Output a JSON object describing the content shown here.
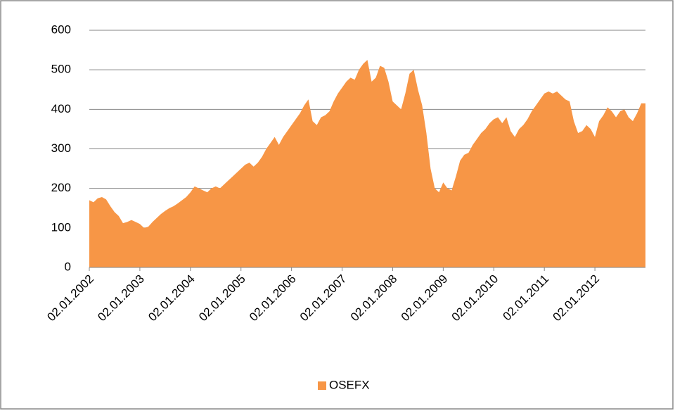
{
  "chart_data": {
    "type": "area",
    "categories": [
      "02.01.2002",
      null,
      null,
      null,
      null,
      null,
      null,
      null,
      null,
      null,
      null,
      null,
      "02.01.2003",
      null,
      null,
      null,
      null,
      null,
      null,
      null,
      null,
      null,
      null,
      null,
      "02.01.2004",
      null,
      null,
      null,
      null,
      null,
      null,
      null,
      null,
      null,
      null,
      null,
      "02.01.2005",
      null,
      null,
      null,
      null,
      null,
      null,
      null,
      null,
      null,
      null,
      null,
      "02.01.2006",
      null,
      null,
      null,
      null,
      null,
      null,
      null,
      null,
      null,
      null,
      null,
      "02.01.2007",
      null,
      null,
      null,
      null,
      null,
      null,
      null,
      null,
      null,
      null,
      null,
      "02.01.2008",
      null,
      null,
      null,
      null,
      null,
      null,
      null,
      null,
      null,
      null,
      null,
      "02.01.2009",
      null,
      null,
      null,
      null,
      null,
      null,
      null,
      null,
      null,
      null,
      null,
      "02.01.2010",
      null,
      null,
      null,
      null,
      null,
      null,
      null,
      null,
      null,
      null,
      null,
      "02.01.2011",
      null,
      null,
      null,
      null,
      null,
      null,
      null,
      null,
      null,
      null,
      null,
      "02.01.2012",
      null,
      null,
      null,
      null,
      null,
      null,
      null,
      null,
      null,
      null,
      null
    ],
    "series": [
      {
        "name": "OSEFX",
        "color": "#f79646",
        "values": [
          170,
          165,
          175,
          178,
          172,
          155,
          140,
          130,
          112,
          115,
          120,
          115,
          110,
          100,
          103,
          115,
          125,
          135,
          143,
          150,
          155,
          162,
          170,
          178,
          190,
          205,
          200,
          195,
          190,
          200,
          205,
          200,
          210,
          220,
          230,
          240,
          250,
          260,
          265,
          255,
          265,
          280,
          300,
          315,
          330,
          310,
          330,
          345,
          360,
          375,
          390,
          410,
          425,
          370,
          360,
          380,
          385,
          395,
          420,
          440,
          455,
          470,
          480,
          475,
          500,
          515,
          525,
          470,
          480,
          510,
          505,
          470,
          420,
          410,
          400,
          440,
          490,
          500,
          450,
          410,
          340,
          250,
          200,
          190,
          215,
          200,
          195,
          230,
          270,
          285,
          290,
          310,
          325,
          340,
          350,
          365,
          375,
          380,
          365,
          380,
          345,
          330,
          350,
          360,
          375,
          395,
          410,
          425,
          440,
          445,
          440,
          445,
          435,
          425,
          420,
          370,
          340,
          345,
          360,
          350,
          330,
          370,
          385,
          405,
          395,
          380,
          395,
          400,
          380,
          370,
          390,
          415
        ]
      }
    ],
    "ylim": [
      0,
      600
    ],
    "yticks": [
      0,
      100,
      200,
      300,
      400,
      500,
      600
    ],
    "grid": true,
    "legend": "bottom"
  }
}
